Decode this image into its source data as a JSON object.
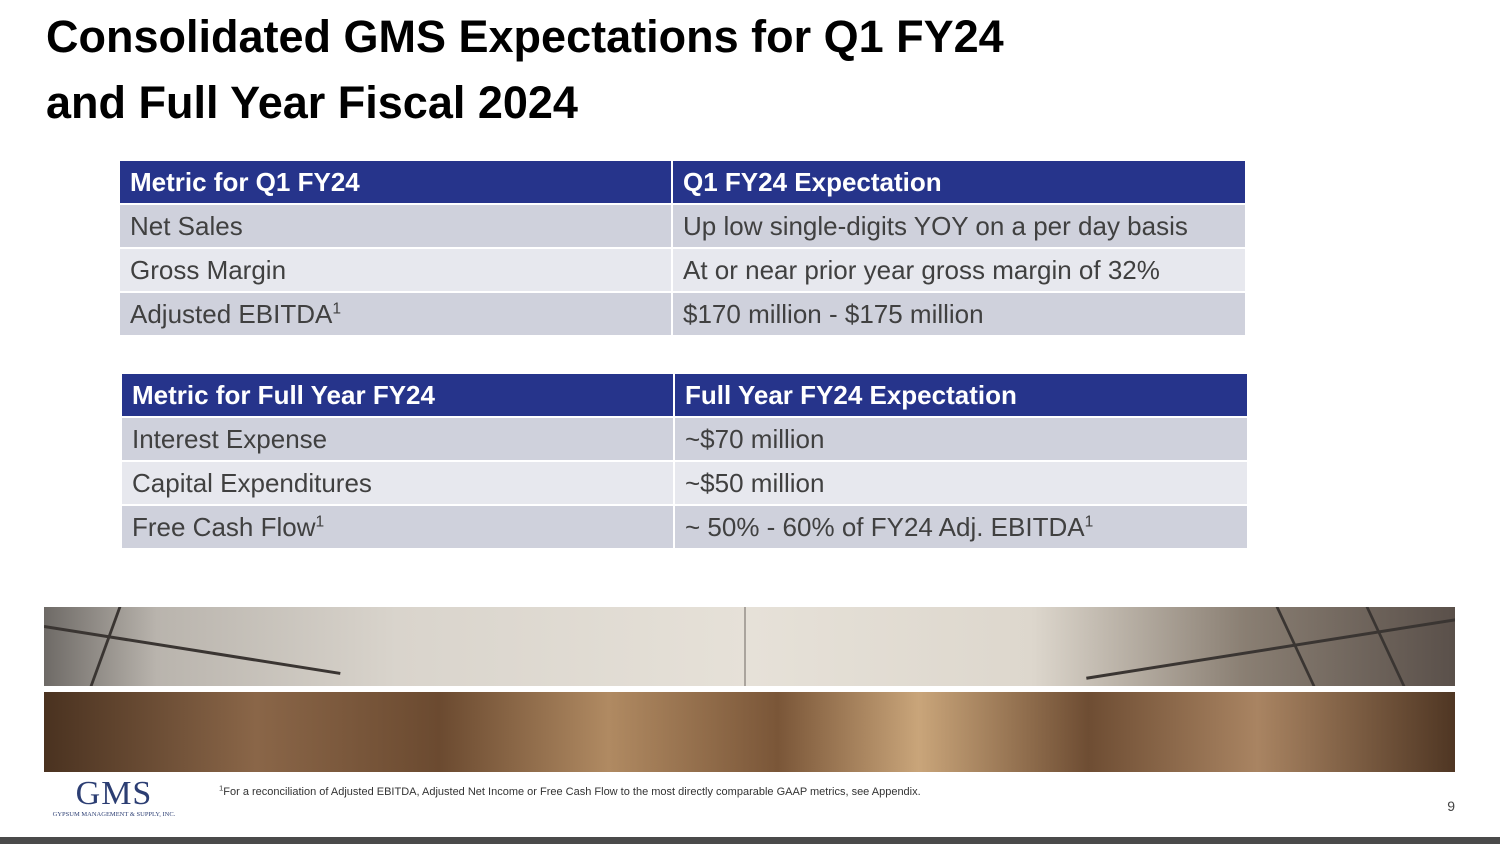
{
  "title": {
    "line1": "Consolidated GMS Expectations for Q1 FY24",
    "line2": "and Full Year Fiscal 2024"
  },
  "q1_table": {
    "headers": [
      "Metric for Q1 FY24",
      "Q1 FY24 Expectation"
    ],
    "rows": [
      {
        "metric": "Net Sales",
        "footnote": "",
        "expectation": "Up low single-digits YOY on a per day basis",
        "exp_footnote": ""
      },
      {
        "metric": "Gross Margin",
        "footnote": "",
        "expectation": "At or near prior year gross margin of 32%",
        "exp_footnote": ""
      },
      {
        "metric": "Adjusted EBITDA",
        "footnote": "1",
        "expectation": "$170 million - $175 million",
        "exp_footnote": ""
      }
    ]
  },
  "fy_table": {
    "headers": [
      "Metric for Full Year FY24",
      "Full Year FY24 Expectation"
    ],
    "rows": [
      {
        "metric": "Interest Expense",
        "footnote": "",
        "expectation": "~$70 million",
        "exp_footnote": ""
      },
      {
        "metric": "Capital Expenditures",
        "footnote": "",
        "expectation": "~$50 million",
        "exp_footnote": ""
      },
      {
        "metric": "Free Cash Flow",
        "footnote": "1",
        "expectation": "~ 50% - 60% of FY24 Adj. EBITDA",
        "exp_footnote": "1"
      }
    ]
  },
  "logo": {
    "mark": "GMS",
    "subtitle": "GYPSUM MANAGEMENT & SUPPLY, INC."
  },
  "footnote": {
    "marker": "1",
    "text": "For a reconciliation of Adjusted EBITDA, Adjusted Net Income or Free Cash Flow to the most directly comparable GAAP metrics, see Appendix."
  },
  "page_number": "9",
  "colors": {
    "header_bg": "#26348b",
    "row_dark": "#cfd1dc",
    "row_light": "#e7e8ee",
    "logo": "#2c3e73"
  }
}
